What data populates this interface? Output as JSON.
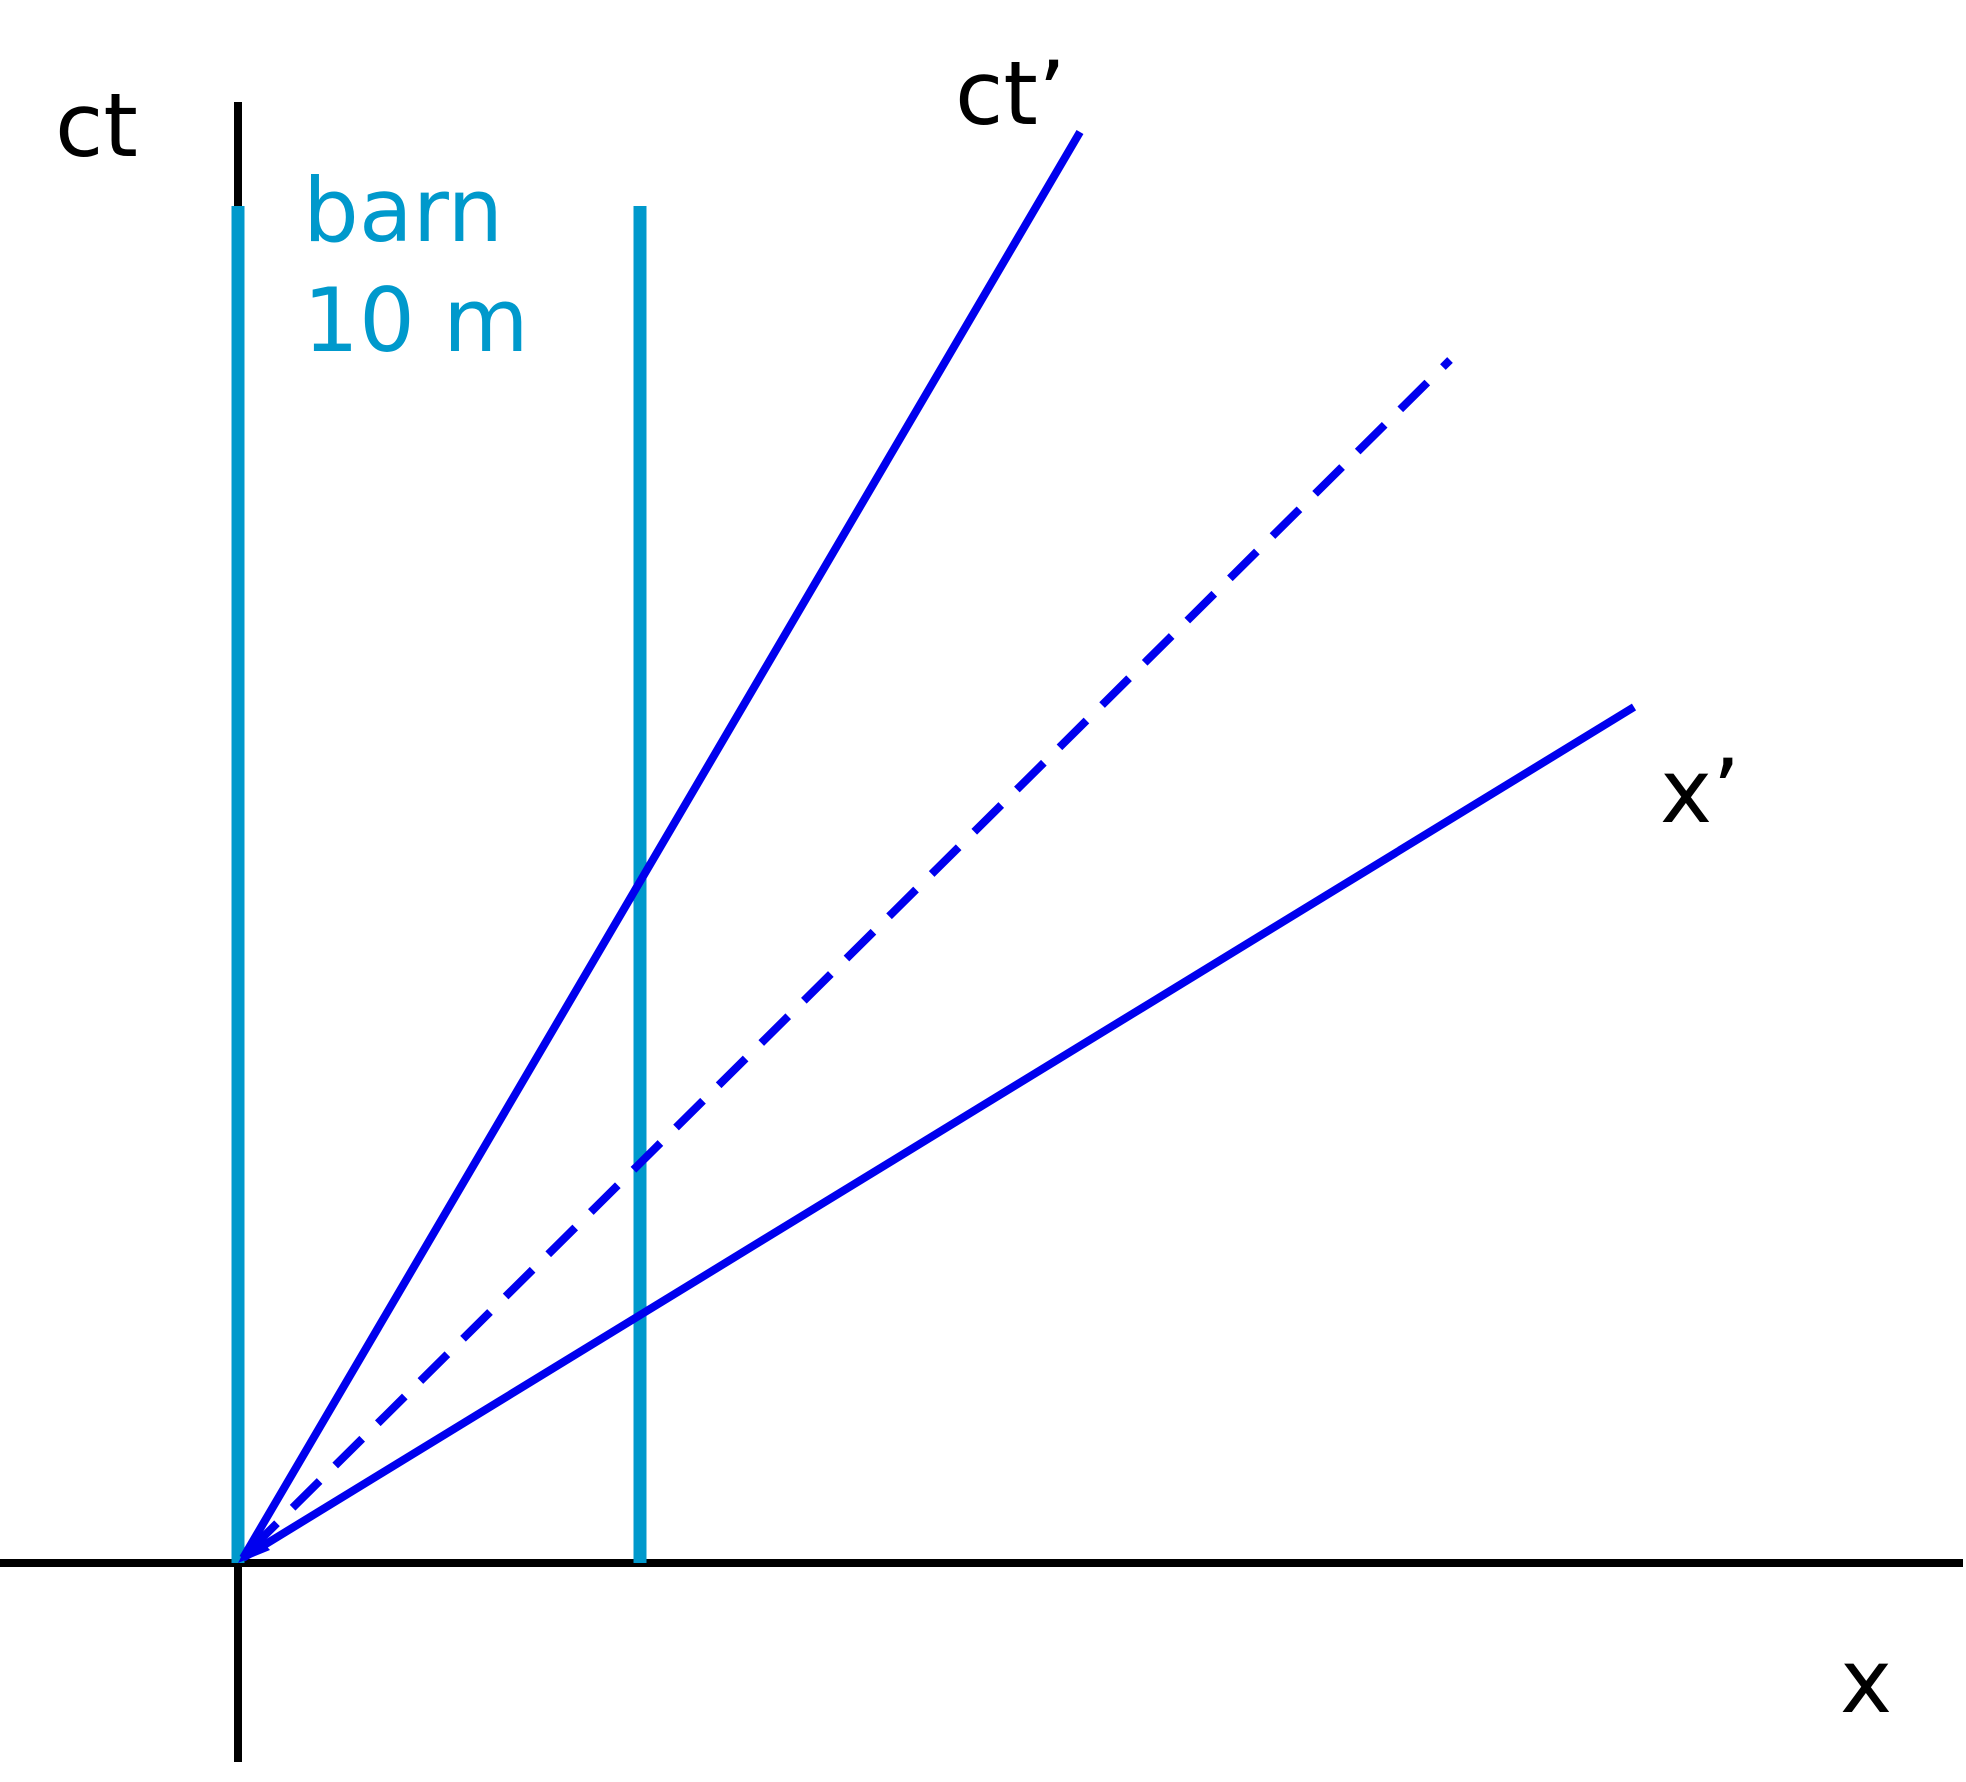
{
  "labels": {
    "ct": "ct",
    "x": "x",
    "ct_prime": "ct’",
    "x_prime": "x’",
    "barn": "barn",
    "barn_length": "10 m"
  },
  "colors": {
    "axes": "#000000",
    "barn": "#0099cc",
    "moving_frame": "#0000ee"
  }
}
